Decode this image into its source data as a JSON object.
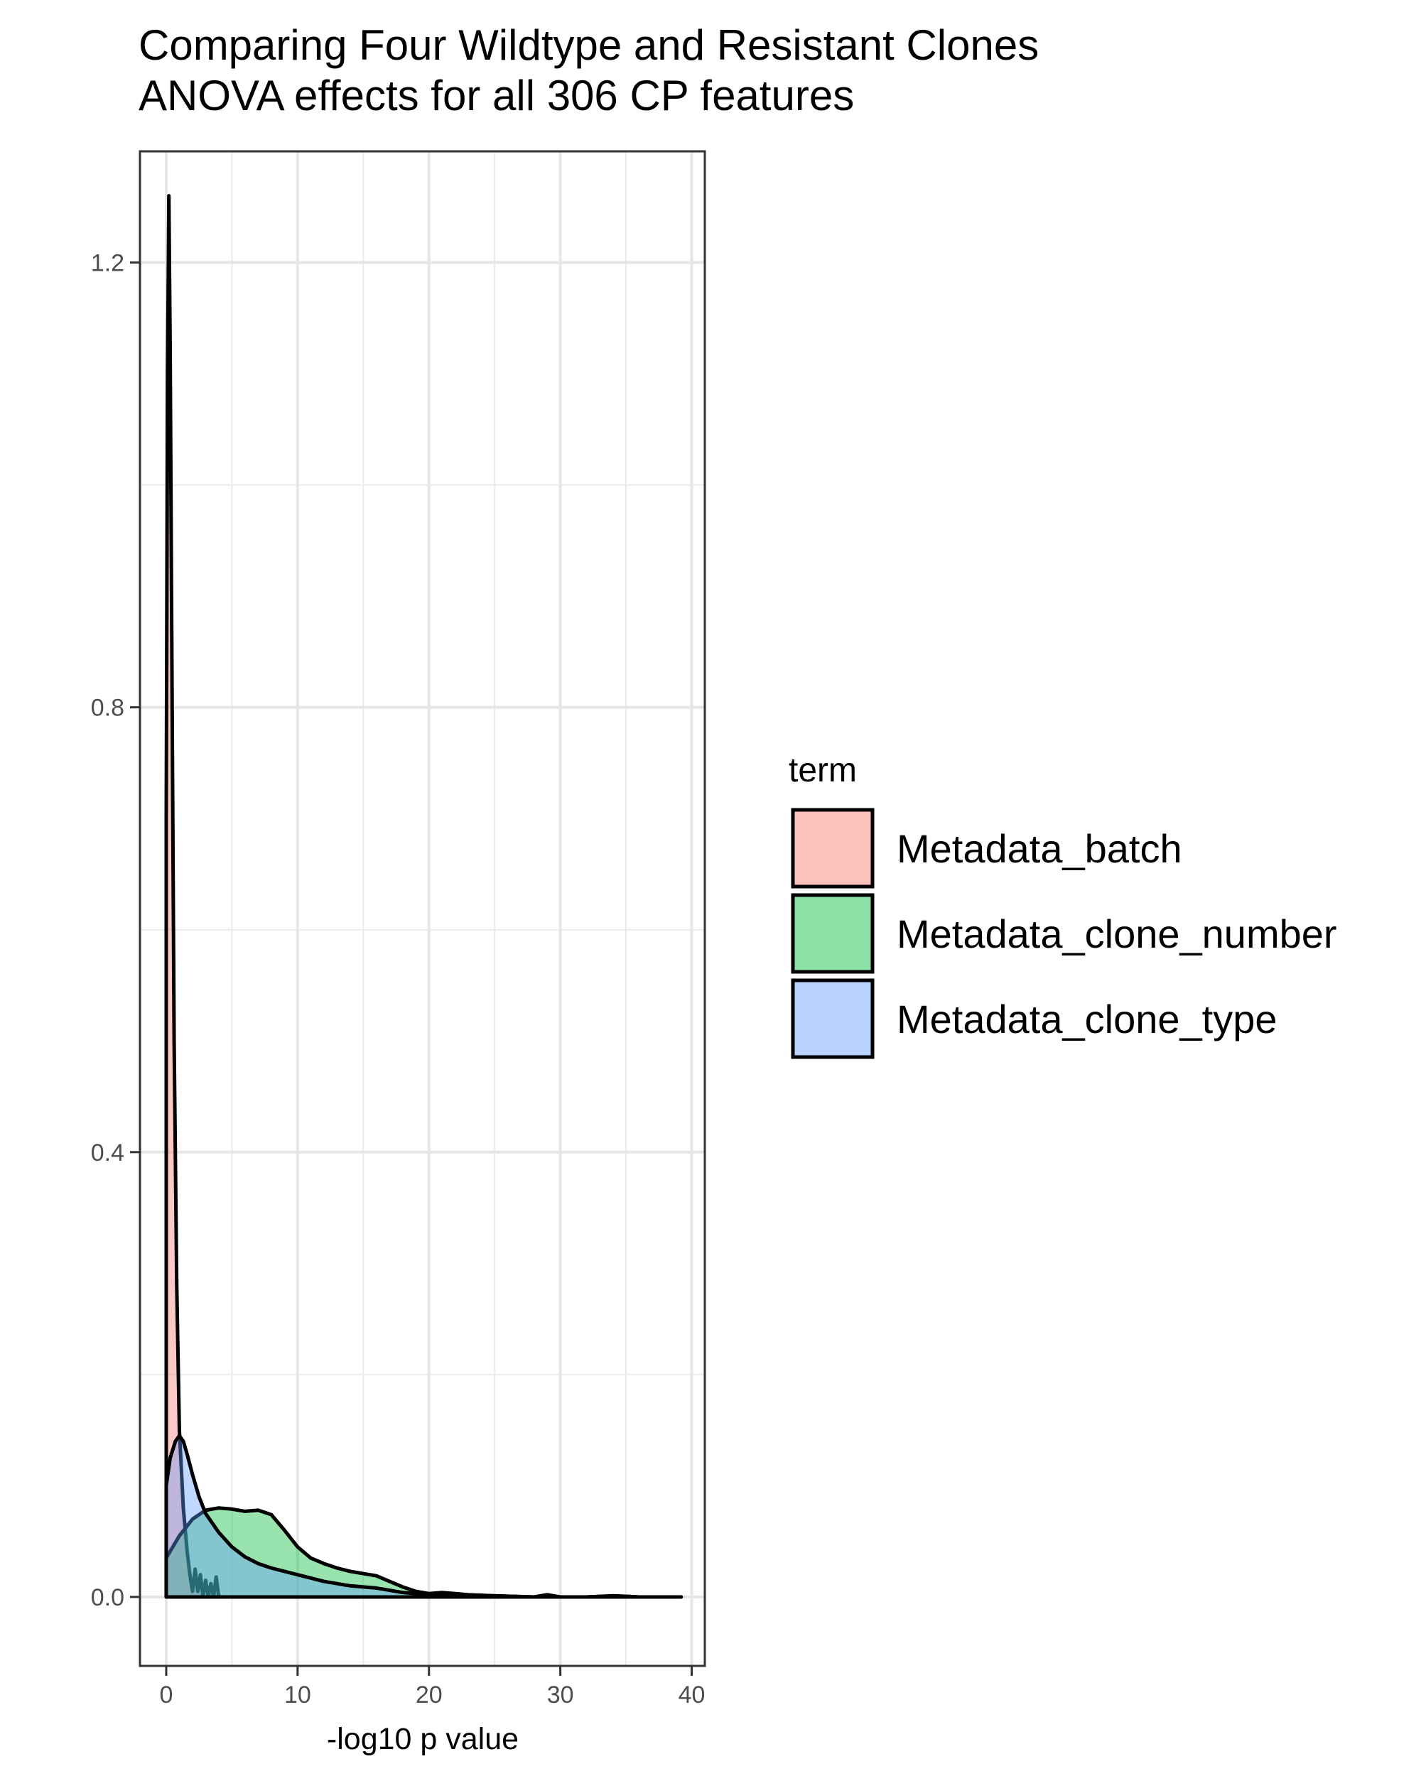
{
  "chart_data": {
    "type": "area",
    "title": "Comparing Four Wildtype and Resistant Clones",
    "subtitle": "ANOVA effects for all 306 CP features",
    "xlabel": "-log10 p value",
    "ylabel": "",
    "xlim": [
      -2,
      41
    ],
    "ylim": [
      -0.062,
      1.3
    ],
    "x_ticks": [
      0,
      10,
      20,
      30,
      40
    ],
    "x_tick_labels": [
      "0",
      "10",
      "20",
      "30",
      "40"
    ],
    "y_ticks": [
      0.0,
      0.4,
      0.8,
      1.2
    ],
    "y_tick_labels": [
      "0.0",
      "0.4",
      "0.8",
      "1.2"
    ],
    "grid": true,
    "legend": {
      "title": "term",
      "position": "right"
    },
    "series": [
      {
        "name": "Metadata_batch",
        "color": "#F8766D",
        "x": [
          0,
          0.1,
          0.2,
          0.3,
          0.45,
          0.6,
          0.8,
          1.0,
          1.3,
          1.6,
          1.8,
          2.0,
          2.2,
          2.4,
          2.6,
          2.8,
          3.0,
          3.2,
          3.4,
          3.6,
          3.8,
          4.0,
          4.3
        ],
        "y": [
          0.7,
          1.1,
          1.26,
          1.12,
          0.8,
          0.5,
          0.28,
          0.15,
          0.08,
          0.04,
          0.02,
          0.005,
          0.025,
          0.005,
          0.02,
          0.0,
          0.015,
          0.0,
          0.012,
          0.0,
          0.018,
          0.0,
          0.0
        ]
      },
      {
        "name": "Metadata_clone_number",
        "color": "#00BA38",
        "x": [
          0,
          0.5,
          1.0,
          2.0,
          3.0,
          4.0,
          5.0,
          6.0,
          7.0,
          8.0,
          9.0,
          10.0,
          11.0,
          12.0,
          13.0,
          14.0,
          15.0,
          16.0,
          17.0,
          18.0,
          19.0,
          20.0,
          21.0,
          22.0,
          23.0,
          25.0,
          28.0,
          29.0,
          30.0,
          32.0,
          34.0,
          36.0,
          39.2
        ],
        "y": [
          0.035,
          0.045,
          0.055,
          0.07,
          0.078,
          0.08,
          0.079,
          0.077,
          0.078,
          0.074,
          0.06,
          0.045,
          0.035,
          0.03,
          0.026,
          0.023,
          0.021,
          0.019,
          0.014,
          0.009,
          0.005,
          0.003,
          0.004,
          0.003,
          0.002,
          0.001,
          0.0,
          0.002,
          0.0,
          0.0,
          0.001,
          0.0,
          0.0
        ]
      },
      {
        "name": "Metadata_clone_type",
        "color": "#619CFF",
        "x": [
          0,
          0.3,
          0.7,
          1.0,
          1.3,
          1.6,
          2.0,
          2.5,
          3.0,
          4.0,
          5.0,
          6.0,
          7.0,
          8.0,
          9.0,
          10.0,
          11.0,
          12.0,
          13.0,
          14.0,
          15.0,
          16.0,
          17.0,
          18.0,
          19.0,
          20.0,
          22.0,
          25.0,
          28.0,
          29.0,
          30.0,
          32.0,
          34.0,
          36.0,
          39.2
        ],
        "y": [
          0.1,
          0.125,
          0.14,
          0.145,
          0.14,
          0.128,
          0.11,
          0.09,
          0.075,
          0.058,
          0.045,
          0.036,
          0.03,
          0.026,
          0.023,
          0.02,
          0.017,
          0.014,
          0.012,
          0.01,
          0.009,
          0.008,
          0.006,
          0.004,
          0.003,
          0.002,
          0.002,
          0.001,
          0.0,
          0.001,
          0.0,
          0.0,
          0.001,
          0.0,
          0.0
        ]
      }
    ]
  }
}
